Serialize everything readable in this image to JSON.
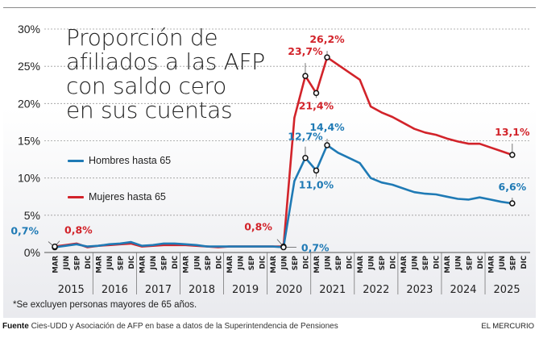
{
  "chart_data": {
    "type": "line",
    "title": "Proporción de afiliados a las AFP con saldo cero en sus cuentas",
    "title_lines": [
      "Proporción de",
      "afiliados a las AFP",
      "con saldo cero",
      "en sus cuentas"
    ],
    "xlabel": "",
    "ylabel": "",
    "ylim": [
      0,
      30
    ],
    "y_ticks": [
      0,
      5,
      10,
      15,
      20,
      25,
      30
    ],
    "y_tick_labels": [
      "0%",
      "5%",
      "10%",
      "15%",
      "20%",
      "25%",
      "30%"
    ],
    "grid": true,
    "legend_position": "left-middle",
    "quarters": [
      "MAR",
      "JUN",
      "SEP",
      "DIC"
    ],
    "years": [
      "2015",
      "2016",
      "2017",
      "2018",
      "2019",
      "2020",
      "2021",
      "2022",
      "2023",
      "2024",
      "2025"
    ],
    "series": [
      {
        "name": "Hombres hasta 65",
        "color": "#1f7ab5",
        "values": [
          0.7,
          0.9,
          1.1,
          0.8,
          0.9,
          1.1,
          1.2,
          1.4,
          0.9,
          1.0,
          1.2,
          1.2,
          1.1,
          1.0,
          0.8,
          0.8,
          0.8,
          0.8,
          0.8,
          0.8,
          0.8,
          0.7,
          9.6,
          12.7,
          11.0,
          14.4,
          13.4,
          12.7,
          12.0,
          10.0,
          9.4,
          9.1,
          8.6,
          8.1,
          7.9,
          7.8,
          7.5,
          7.2,
          7.1,
          7.4,
          7.1,
          6.8,
          6.6
        ]
      },
      {
        "name": "Mujeres hasta 65",
        "color": "#d2232a",
        "values": [
          0.8,
          1.0,
          1.2,
          0.7,
          0.9,
          1.0,
          1.1,
          1.2,
          0.8,
          0.9,
          1.0,
          1.0,
          1.0,
          0.9,
          0.8,
          0.7,
          0.8,
          0.8,
          0.8,
          0.8,
          0.8,
          0.8,
          18.1,
          23.7,
          21.4,
          26.2,
          25.2,
          24.2,
          23.2,
          19.6,
          18.8,
          18.2,
          17.4,
          16.6,
          16.1,
          15.8,
          15.3,
          14.9,
          14.6,
          14.6,
          14.1,
          13.6,
          13.1
        ]
      }
    ],
    "annotations": [
      {
        "series": 0,
        "index": 0,
        "text": "0,7%",
        "color": "#1f7ab5"
      },
      {
        "series": 1,
        "index": 0,
        "text": "0,8%",
        "color": "#d2232a"
      },
      {
        "series": 1,
        "index": 21,
        "text": "0,8%",
        "color": "#d2232a"
      },
      {
        "series": 0,
        "index": 21,
        "text": "0,7%",
        "color": "#1f7ab5"
      },
      {
        "series": 1,
        "index": 23,
        "text": "23,7%",
        "color": "#d2232a"
      },
      {
        "series": 1,
        "index": 24,
        "text": "21,4%",
        "color": "#d2232a"
      },
      {
        "series": 1,
        "index": 25,
        "text": "26,2%",
        "color": "#d2232a"
      },
      {
        "series": 0,
        "index": 23,
        "text": "12,7%",
        "color": "#1f7ab5"
      },
      {
        "series": 0,
        "index": 24,
        "text": "11,0%",
        "color": "#1f7ab5"
      },
      {
        "series": 0,
        "index": 25,
        "text": "14,4%",
        "color": "#1f7ab5"
      },
      {
        "series": 1,
        "index": 42,
        "text": "13,1%",
        "color": "#d2232a"
      },
      {
        "series": 0,
        "index": 42,
        "text": "6,6%",
        "color": "#1f7ab5"
      }
    ]
  },
  "legend": {
    "men_label": "Hombres hasta 65",
    "women_label": "Mujeres hasta 65"
  },
  "footnote": "*Se excluyen personas mayores de 65 años.",
  "source": {
    "label": "Fuente",
    "text": "Cies-UDD y Asociación de AFP en base a datos de la Superintendencia de Pensiones"
  },
  "brand": "EL MERCURIO"
}
